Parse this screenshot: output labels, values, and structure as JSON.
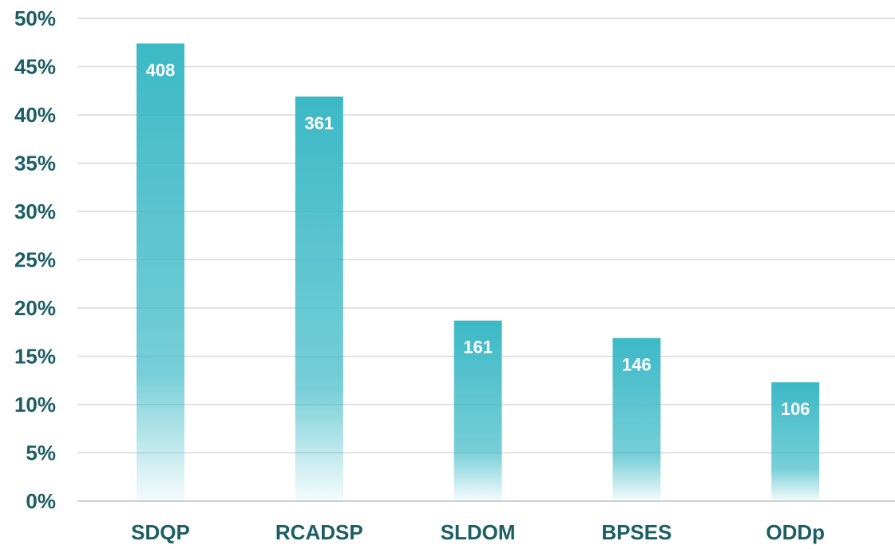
{
  "chart_data": {
    "type": "bar",
    "title": "",
    "xlabel": "",
    "ylabel": "",
    "categories": [
      "SDQP",
      "RCADSP",
      "SLDOM",
      "BPSES",
      "ODDp"
    ],
    "values": [
      47.4,
      41.9,
      18.7,
      16.9,
      12.3
    ],
    "data_labels": [
      "408",
      "361",
      "161",
      "146",
      "106"
    ],
    "ylim": [
      0,
      50
    ],
    "y_ticks": [
      0,
      5,
      10,
      15,
      20,
      25,
      30,
      35,
      40,
      45,
      50
    ],
    "y_tick_labels": [
      "0%",
      "5%",
      "10%",
      "15%",
      "20%",
      "25%",
      "30%",
      "35%",
      "40%",
      "45%",
      "50%"
    ],
    "grid": true,
    "legend": "none",
    "colors": {
      "bar": "#3cb9c6",
      "bar_fade": "#ffffff",
      "tick_text": "#1b5e63",
      "data_label_text": "#ffffff",
      "grid": "#d9d9d9"
    }
  }
}
